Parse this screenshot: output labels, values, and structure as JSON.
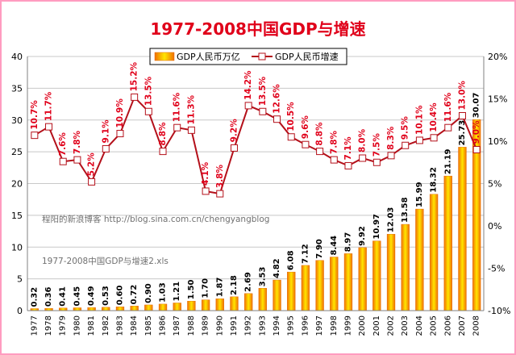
{
  "chart_data": {
    "type": "bar+line",
    "title": "1977-2008中国GDP与增速",
    "categories": [
      "1977",
      "1978",
      "1979",
      "1980",
      "1981",
      "1982",
      "1983",
      "1984",
      "1985",
      "1986",
      "1987",
      "1988",
      "1989",
      "1990",
      "1991",
      "1992",
      "1993",
      "1994",
      "1995",
      "1996",
      "1997",
      "1998",
      "1999",
      "2000",
      "2001",
      "2002",
      "2003",
      "2004",
      "2005",
      "2006",
      "2007",
      "2008"
    ],
    "series": [
      {
        "name": "GDP人民币万亿",
        "type": "bar",
        "axis": "left",
        "values": [
          0.32,
          0.36,
          0.41,
          0.45,
          0.49,
          0.53,
          0.6,
          0.72,
          0.9,
          1.03,
          1.21,
          1.5,
          1.7,
          1.87,
          2.18,
          2.69,
          3.53,
          4.82,
          6.08,
          7.12,
          7.9,
          8.44,
          8.97,
          9.92,
          10.97,
          12.03,
          13.58,
          15.99,
          18.32,
          21.19,
          25.73,
          30.07
        ],
        "labels": [
          "0.32",
          "0.36",
          "0.41",
          "0.45",
          "0.49",
          "0.53",
          "0.60",
          "0.72",
          "0.90",
          "1.03",
          "1.21",
          "1.50",
          "1.70",
          "1.87",
          "2.18",
          "2.69",
          "3.53",
          "4.82",
          "6.08",
          "7.12",
          "7.90",
          "8.44",
          "8.97",
          "9.92",
          "10.97",
          "12.03",
          "13.58",
          "15.99",
          "18.32",
          "21.19",
          "25.73",
          "30.07"
        ]
      },
      {
        "name": "GDP人民币增速",
        "type": "line",
        "axis": "right",
        "values": [
          10.7,
          11.7,
          7.6,
          7.8,
          5.2,
          9.1,
          10.9,
          15.2,
          13.5,
          8.8,
          11.6,
          11.3,
          4.1,
          3.8,
          9.2,
          14.2,
          13.5,
          12.6,
          10.5,
          9.6,
          8.8,
          7.8,
          7.1,
          8.0,
          7.5,
          8.3,
          9.5,
          10.1,
          10.4,
          11.6,
          13.0,
          9.0
        ],
        "labels": [
          "10.7%",
          "11.7%",
          "7.6%",
          "7.8%",
          "5.2%",
          "9.1%",
          "10.9%",
          "15.2%",
          "13.5%",
          "8.8%",
          "11.6%",
          "11.3%",
          "4.1%",
          "3.8%",
          "9.2%",
          "14.2%",
          "13.5%",
          "12.6%",
          "10.5%",
          "9.6%",
          "8.8%",
          "7.8%",
          "7.1%",
          "8.0%",
          "7.5%",
          "8.3%",
          "9.5%",
          "10.1%",
          "10.4%",
          "11.6%",
          "13.0%",
          "9.0%"
        ]
      }
    ],
    "y_left": {
      "min": 0,
      "max": 40,
      "step": 5,
      "ticks": [
        "0",
        "5",
        "10",
        "15",
        "20",
        "25",
        "30",
        "35",
        "40"
      ]
    },
    "y_right": {
      "min": -10,
      "max": 20,
      "step": 5,
      "ticks": [
        "-10%",
        "-5%",
        "0%",
        "5%",
        "10%",
        "15%",
        "20%"
      ]
    },
    "grid": true,
    "legend_position": "top-center",
    "annotations": [
      "程阳的新浪博客 http://blog.sina.com.cn/chengyangblog",
      "1977-2008中国GDP与增速2.xls"
    ]
  },
  "colors": {
    "title": "#e0001a",
    "bar_fill_center": "#ffe600",
    "bar_fill_edge": "#f07000",
    "bar_label": "#000000",
    "line": "#b4101a",
    "line_label": "#e0001a",
    "marker_fill": "#ffffff",
    "grid": "#c8c8c8",
    "axis": "#808080",
    "watermark": "#707070"
  }
}
